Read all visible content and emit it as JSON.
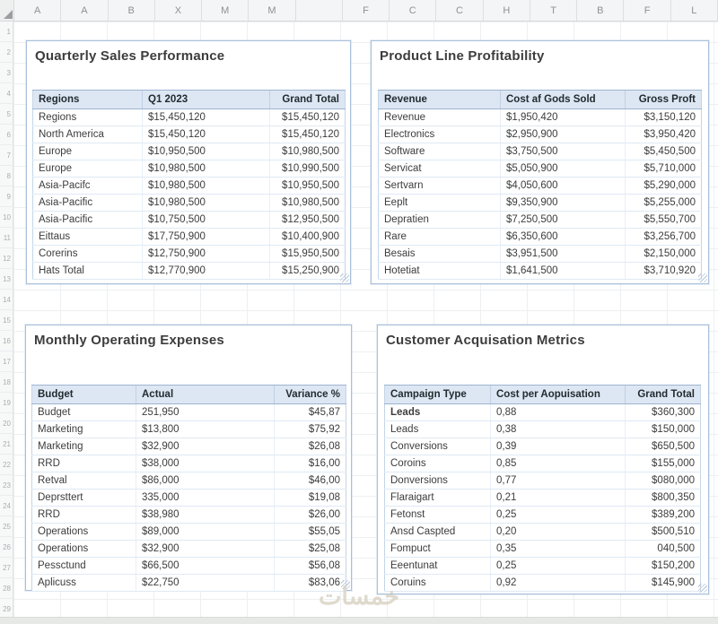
{
  "sheet": {
    "column_headers": [
      "A",
      "A",
      "B",
      "X",
      "M",
      "M",
      "",
      "F",
      "C",
      "C",
      "H",
      "T",
      "B",
      "F",
      "L"
    ],
    "row_count": 29,
    "watermark": "خمسات"
  },
  "colors": {
    "table_header_fill": "#dde7f3",
    "table_header_border": "#9db4d0",
    "panel_border": "#a9c0da",
    "row_divider": "#dfe9f4",
    "title_text": "#3d3d3d",
    "watermark_text": "#dbd4c6"
  },
  "panels": [
    {
      "title": "Quarterly Sales Performance",
      "columns": [
        "Regions",
        "Q1 2023",
        "Grand Total"
      ],
      "rows": [
        [
          "Regions",
          "$15,450,120",
          "$15,450,120"
        ],
        [
          "North America",
          "$15,450,120",
          "$15,450,120"
        ],
        [
          "Europe",
          "$10,950,500",
          "$10,980,500"
        ],
        [
          "Europe",
          "$10,980,500",
          "$10,990,500"
        ],
        [
          "Asia-Pacifc",
          "$10,980,500",
          "$10,950,500"
        ],
        [
          "Asia-Pacific",
          "$10,980,500",
          "$10,980,500"
        ],
        [
          "Asia-Pacific",
          "$10,750,500",
          "$12,950,500"
        ],
        [
          "Eittaus",
          "$17,750,900",
          "$10,400,900"
        ],
        [
          "Corerins",
          "$12,750,900",
          "$15,950,500"
        ],
        [
          "Hats Total",
          "$12,770,900",
          "$15,250,900"
        ]
      ]
    },
    {
      "title": "Product Line Profitability",
      "columns": [
        "Revenue",
        "Cost af Gods Sold",
        "Gross Proft"
      ],
      "rows": [
        [
          "Revenue",
          "$1,950,420",
          "$3,150,120"
        ],
        [
          "Electronics",
          "$2,950,900",
          "$3,950,420"
        ],
        [
          "Software",
          "$3,750,500",
          "$5,450,500"
        ],
        [
          "Servicat",
          "$5,050,900",
          "$5,710,000"
        ],
        [
          "Sertvarn",
          "$4,050,600",
          "$5,290,000"
        ],
        [
          "Eeplt",
          "$9,350,900",
          "$5,255,000"
        ],
        [
          "Depratien",
          "$7,250,500",
          "$5,550,700"
        ],
        [
          "Rare",
          "$6,350,600",
          "$3,256,700"
        ],
        [
          "Besais",
          "$3,951,500",
          "$2,150,000"
        ],
        [
          "Hotetiat",
          "$1,641,500",
          "$3,710,920"
        ]
      ]
    },
    {
      "title": "Monthly Operating Expenses",
      "columns": [
        "Budget",
        "Actual",
        "Variance %"
      ],
      "rows": [
        [
          "Budget",
          "251,950",
          "$45,87"
        ],
        [
          "Marketing",
          "$13,800",
          "$75,92"
        ],
        [
          "Marketing",
          "$32,900",
          "$26,08"
        ],
        [
          "RRD",
          "$38,000",
          "$16,00"
        ],
        [
          "Retval",
          "$86,000",
          "$46,00"
        ],
        [
          "Deprsttert",
          "335,000",
          "$19,08"
        ],
        [
          "RRD",
          "$38,980",
          "$26,00"
        ],
        [
          "Operations",
          "$89,000",
          "$55,05"
        ],
        [
          "Operations",
          "$32,900",
          "$25,08"
        ],
        [
          "Pessctund",
          "$66,500",
          "$56,08"
        ],
        [
          "Aplicuss",
          "$22,750",
          "$83,06"
        ]
      ]
    },
    {
      "title": "Customer Acquisation Metrics",
      "columns": [
        "Campaign Type",
        "Cost per Aopuisation",
        "Grand Total"
      ],
      "bold_rows": [
        0
      ],
      "rows": [
        [
          "Leads",
          "0,88",
          "$360,300"
        ],
        [
          "Leads",
          "0,38",
          "$150,000"
        ],
        [
          "Conversions",
          "0,39",
          "$650,500"
        ],
        [
          "Coroins",
          "0,85",
          "$155,000"
        ],
        [
          "Donversions",
          "0,77",
          "$080,000"
        ],
        [
          "Flaraigart",
          "0,21",
          "$800,350"
        ],
        [
          "Fetonst",
          "0,25",
          "$389,200"
        ],
        [
          "Ansd Caspted",
          "0,20",
          "$500,510"
        ],
        [
          "Fompuct",
          "0,35",
          "040,500"
        ],
        [
          "Eeentunat",
          "0,25",
          "$150,200"
        ],
        [
          "Coruins",
          "0,92",
          "$145,900"
        ]
      ]
    }
  ]
}
